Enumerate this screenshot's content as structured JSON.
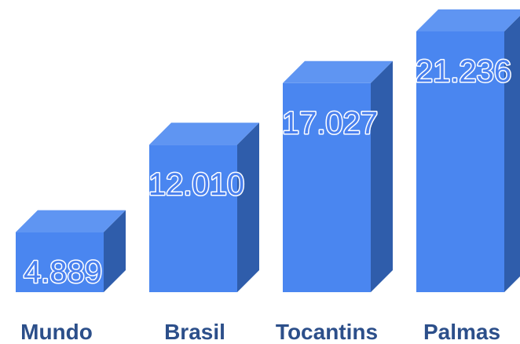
{
  "chart_data": {
    "type": "bar",
    "style": "3d",
    "categories": [
      "Mundo",
      "Brasil",
      "Tocantins",
      "Palmas"
    ],
    "values": [
      4.889,
      12.01,
      17.027,
      21.236
    ],
    "value_labels": [
      "4.889",
      "12.010",
      "17.027",
      "21.236"
    ],
    "ylim": [
      0,
      21.236
    ],
    "grid": false,
    "legend": "none",
    "colors": {
      "front": "#4a86f0",
      "top": "#5f95f2",
      "side": "#2f5dab",
      "category_text": "#2c4f8a",
      "value_text": "#4a80ee"
    }
  }
}
